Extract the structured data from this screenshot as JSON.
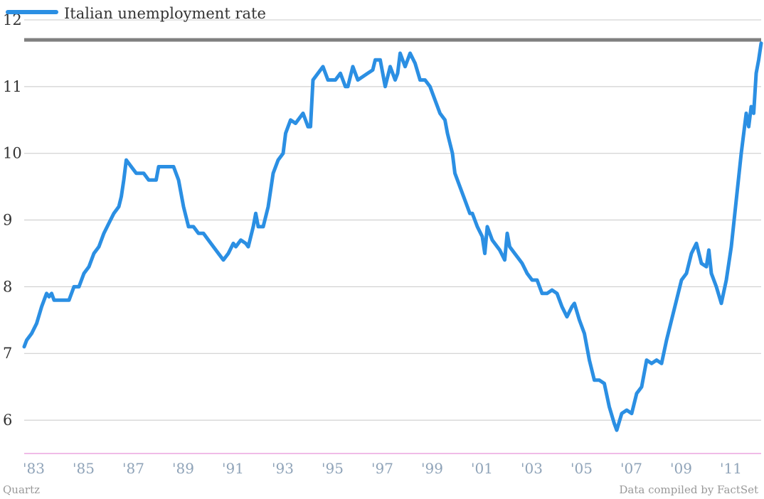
{
  "footer": {
    "source_left": "Quartz",
    "source_right": "Data compiled by FactSet"
  },
  "colors": {
    "series": "#2b8fe3",
    "reference": "#808080",
    "grid": "#c8c8c8",
    "baseline": "#e07ad0",
    "xtick": "#8fa3b8"
  },
  "chart_data": {
    "type": "line",
    "xlabel": "",
    "ylabel": "",
    "xlim": [
      1983.0,
      2012.5
    ],
    "ylim": [
      5.5,
      12
    ],
    "yticks": [
      6,
      7,
      8,
      9,
      10,
      11,
      12
    ],
    "xticks": [
      {
        "label": "'83",
        "x": 1983
      },
      {
        "label": "'85",
        "x": 1985
      },
      {
        "label": "'87",
        "x": 1987
      },
      {
        "label": "'89",
        "x": 1989
      },
      {
        "label": "'91",
        "x": 1991
      },
      {
        "label": "'93",
        "x": 1993
      },
      {
        "label": "'95",
        "x": 1995
      },
      {
        "label": "'97",
        "x": 1997
      },
      {
        "label": "'99",
        "x": 1999
      },
      {
        "label": "'01",
        "x": 2001
      },
      {
        "label": "'03",
        "x": 2003
      },
      {
        "label": "'05",
        "x": 2005
      },
      {
        "label": "'07",
        "x": 2007
      },
      {
        "label": "'09",
        "x": 2009
      },
      {
        "label": "'11",
        "x": 2011
      }
    ],
    "grid": true,
    "legend": "top-left",
    "reference_line": {
      "y": 11.7
    },
    "series": [
      {
        "name": "Italian unemployment rate",
        "points": [
          [
            1983.0,
            7.1
          ],
          [
            1983.1,
            7.2
          ],
          [
            1983.3,
            7.3
          ],
          [
            1983.5,
            7.45
          ],
          [
            1983.7,
            7.7
          ],
          [
            1983.9,
            7.9
          ],
          [
            1984.0,
            7.85
          ],
          [
            1984.1,
            7.9
          ],
          [
            1984.2,
            7.8
          ],
          [
            1984.5,
            7.8
          ],
          [
            1984.8,
            7.8
          ],
          [
            1985.0,
            8.0
          ],
          [
            1985.2,
            8.0
          ],
          [
            1985.4,
            8.2
          ],
          [
            1985.6,
            8.3
          ],
          [
            1985.8,
            8.5
          ],
          [
            1986.0,
            8.6
          ],
          [
            1986.2,
            8.8
          ],
          [
            1986.4,
            8.95
          ],
          [
            1986.6,
            9.1
          ],
          [
            1986.8,
            9.2
          ],
          [
            1986.9,
            9.35
          ],
          [
            1987.0,
            9.6
          ],
          [
            1987.1,
            9.9
          ],
          [
            1987.3,
            9.8
          ],
          [
            1987.5,
            9.7
          ],
          [
            1987.8,
            9.7
          ],
          [
            1988.0,
            9.6
          ],
          [
            1988.3,
            9.6
          ],
          [
            1988.4,
            9.8
          ],
          [
            1988.7,
            9.8
          ],
          [
            1989.0,
            9.8
          ],
          [
            1989.2,
            9.6
          ],
          [
            1989.4,
            9.2
          ],
          [
            1989.6,
            8.9
          ],
          [
            1989.8,
            8.9
          ],
          [
            1990.0,
            8.8
          ],
          [
            1990.2,
            8.8
          ],
          [
            1990.4,
            8.7
          ],
          [
            1990.6,
            8.6
          ],
          [
            1990.8,
            8.5
          ],
          [
            1991.0,
            8.4
          ],
          [
            1991.2,
            8.5
          ],
          [
            1991.4,
            8.65
          ],
          [
            1991.5,
            8.6
          ],
          [
            1991.7,
            8.7
          ],
          [
            1991.9,
            8.65
          ],
          [
            1992.0,
            8.6
          ],
          [
            1992.2,
            8.9
          ],
          [
            1992.3,
            9.1
          ],
          [
            1992.4,
            8.9
          ],
          [
            1992.6,
            8.9
          ],
          [
            1992.8,
            9.2
          ],
          [
            1993.0,
            9.7
          ],
          [
            1993.2,
            9.9
          ],
          [
            1993.4,
            10.0
          ],
          [
            1993.5,
            10.3
          ],
          [
            1993.7,
            10.5
          ],
          [
            1993.9,
            10.45
          ],
          [
            1994.0,
            10.5
          ],
          [
            1994.2,
            10.6
          ],
          [
            1994.4,
            10.4
          ],
          [
            1994.5,
            10.4
          ],
          [
            1994.6,
            11.1
          ],
          [
            1994.8,
            11.2
          ],
          [
            1995.0,
            11.3
          ],
          [
            1995.2,
            11.1
          ],
          [
            1995.5,
            11.1
          ],
          [
            1995.7,
            11.2
          ],
          [
            1995.9,
            11.0
          ],
          [
            1996.0,
            11.0
          ],
          [
            1996.2,
            11.3
          ],
          [
            1996.4,
            11.1
          ],
          [
            1996.6,
            11.15
          ],
          [
            1996.8,
            11.2
          ],
          [
            1997.0,
            11.25
          ],
          [
            1997.1,
            11.4
          ],
          [
            1997.3,
            11.4
          ],
          [
            1997.5,
            11.0
          ],
          [
            1997.7,
            11.3
          ],
          [
            1997.9,
            11.1
          ],
          [
            1998.0,
            11.2
          ],
          [
            1998.1,
            11.5
          ],
          [
            1998.3,
            11.3
          ],
          [
            1998.5,
            11.5
          ],
          [
            1998.7,
            11.35
          ],
          [
            1998.9,
            11.1
          ],
          [
            1999.1,
            11.1
          ],
          [
            1999.3,
            11.0
          ],
          [
            1999.5,
            10.8
          ],
          [
            1999.7,
            10.6
          ],
          [
            1999.9,
            10.5
          ],
          [
            2000.0,
            10.3
          ],
          [
            2000.2,
            10.0
          ],
          [
            2000.3,
            9.7
          ],
          [
            2000.5,
            9.5
          ],
          [
            2000.7,
            9.3
          ],
          [
            2000.9,
            9.1
          ],
          [
            2001.0,
            9.1
          ],
          [
            2001.2,
            8.9
          ],
          [
            2001.4,
            8.75
          ],
          [
            2001.5,
            8.5
          ],
          [
            2001.6,
            8.9
          ],
          [
            2001.8,
            8.7
          ],
          [
            2002.0,
            8.6
          ],
          [
            2002.1,
            8.55
          ],
          [
            2002.3,
            8.4
          ],
          [
            2002.4,
            8.8
          ],
          [
            2002.5,
            8.6
          ],
          [
            2002.7,
            8.5
          ],
          [
            2002.9,
            8.4
          ],
          [
            2003.0,
            8.35
          ],
          [
            2003.2,
            8.2
          ],
          [
            2003.4,
            8.1
          ],
          [
            2003.6,
            8.1
          ],
          [
            2003.8,
            7.9
          ],
          [
            2004.0,
            7.9
          ],
          [
            2004.2,
            7.95
          ],
          [
            2004.4,
            7.9
          ],
          [
            2004.6,
            7.7
          ],
          [
            2004.8,
            7.55
          ],
          [
            2005.0,
            7.7
          ],
          [
            2005.1,
            7.75
          ],
          [
            2005.3,
            7.5
          ],
          [
            2005.5,
            7.3
          ],
          [
            2005.7,
            6.9
          ],
          [
            2005.9,
            6.6
          ],
          [
            2006.1,
            6.6
          ],
          [
            2006.3,
            6.55
          ],
          [
            2006.5,
            6.2
          ],
          [
            2006.7,
            5.95
          ],
          [
            2006.8,
            5.85
          ],
          [
            2007.0,
            6.1
          ],
          [
            2007.2,
            6.15
          ],
          [
            2007.4,
            6.1
          ],
          [
            2007.6,
            6.4
          ],
          [
            2007.8,
            6.5
          ],
          [
            2008.0,
            6.9
          ],
          [
            2008.2,
            6.85
          ],
          [
            2008.4,
            6.9
          ],
          [
            2008.6,
            6.85
          ],
          [
            2008.8,
            7.2
          ],
          [
            2009.0,
            7.5
          ],
          [
            2009.2,
            7.8
          ],
          [
            2009.4,
            8.1
          ],
          [
            2009.6,
            8.2
          ],
          [
            2009.8,
            8.5
          ],
          [
            2010.0,
            8.65
          ],
          [
            2010.2,
            8.35
          ],
          [
            2010.4,
            8.3
          ],
          [
            2010.5,
            8.55
          ],
          [
            2010.6,
            8.2
          ],
          [
            2010.8,
            8.0
          ],
          [
            2011.0,
            7.75
          ],
          [
            2011.2,
            8.1
          ],
          [
            2011.4,
            8.6
          ],
          [
            2011.6,
            9.3
          ],
          [
            2011.8,
            10.0
          ],
          [
            2012.0,
            10.6
          ],
          [
            2012.1,
            10.4
          ],
          [
            2012.2,
            10.7
          ],
          [
            2012.3,
            10.6
          ],
          [
            2012.4,
            11.2
          ],
          [
            2012.5,
            11.4
          ],
          [
            2012.6,
            11.65
          ]
        ]
      }
    ]
  }
}
